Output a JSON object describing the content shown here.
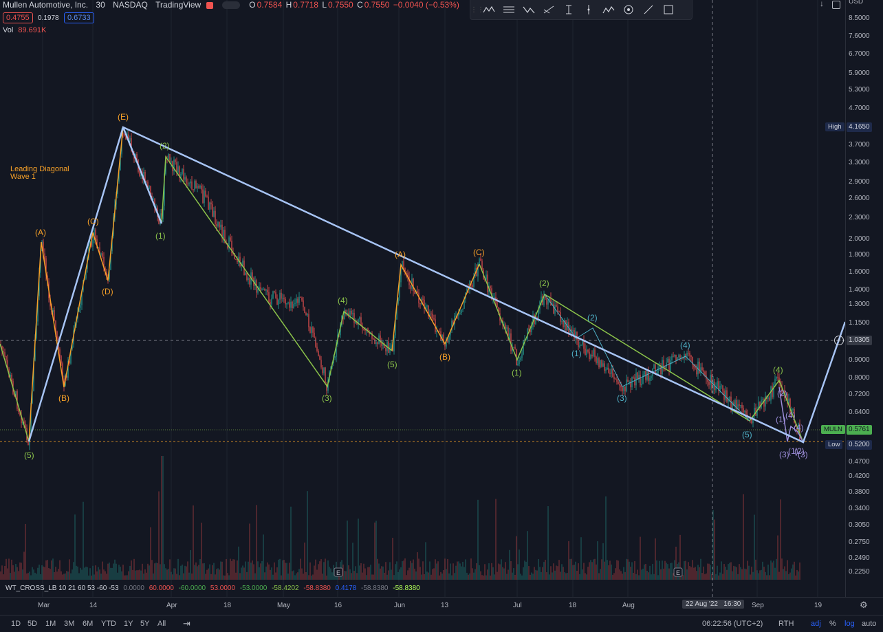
{
  "header": {
    "symbol_name": "Mullen Automotive, Inc.",
    "interval": "30",
    "exchange": "NASDAQ",
    "platform": "TradingView",
    "ohlc": {
      "o_label": "O",
      "o": "0.7584",
      "h_label": "H",
      "h": "0.7718",
      "l_label": "L",
      "l": "0.7550",
      "c_label": "C",
      "c": "0.7550",
      "change": "−0.0040 (−0.53%)"
    },
    "bid": "0.4755",
    "spread": "0.1978",
    "ask": "0.6733",
    "vol_label": "Vol",
    "vol_value": "89.691K"
  },
  "annotation": {
    "line1": "Leading Diagonal",
    "line2": "Wave 1"
  },
  "price_axis": {
    "currency": "USD",
    "ticks": [
      "8.5000",
      "7.6000",
      "6.7000",
      "5.9000",
      "5.3000",
      "4.7000",
      "3.7000",
      "3.3000",
      "2.9000",
      "2.6000",
      "2.3000",
      "2.0000",
      "1.8000",
      "1.6000",
      "1.4000",
      "1.3000",
      "1.1500",
      "0.9000",
      "0.8000",
      "0.7200",
      "0.6400",
      "0.4700",
      "0.4200",
      "0.3800",
      "0.3400",
      "0.3050",
      "0.2750",
      "0.2490",
      "0.2250"
    ],
    "high_label": "High",
    "high_value": "4.1650",
    "crosshair_value": "1.0305",
    "symbol_tag": "MULN",
    "last_value": "0.5761",
    "low_label": "Low",
    "low_value": "0.5200"
  },
  "time_axis": {
    "ticks": [
      "Mar",
      "14",
      "Apr",
      "18",
      "May",
      "16",
      "Jun",
      "13",
      "Jul",
      "18",
      "Aug",
      "Sep",
      "19"
    ],
    "crosshair_time": "22 Aug '22   16:30"
  },
  "wave_labels": [
    "(5)",
    "(A)",
    "(B)",
    "(C)",
    "(D)",
    "(E)",
    "(2)",
    "(1)",
    "(3)",
    "(4)",
    "(5)",
    "(A)",
    "(B)",
    "(C)",
    "(1)",
    "(2)",
    "(2)",
    "(1)",
    "(3)",
    "(4)",
    "(5)",
    "(4)",
    "(2)",
    "(1)",
    "(4)",
    "(3)",
    "(1)",
    "(2)",
    "(3)",
    "(4)"
  ],
  "indicator": {
    "name": "WT_CROSS_LB 10 21 60 53 -60 -53",
    "v1": "0.0000",
    "v2": "60.0000",
    "v3": "-60.0000",
    "v4": "53.0000",
    "v5": "-53.0000",
    "v6": "-58.4202",
    "v7": "-58.8380",
    "v8": "0.4178",
    "v9": "-58.8380",
    "v10": "-58.8380"
  },
  "bottom_bar": {
    "ranges": [
      "1D",
      "5D",
      "1M",
      "3M",
      "6M",
      "YTD",
      "1Y",
      "5Y",
      "All"
    ],
    "clock": "06:22:56 (UTC+2)",
    "session": "RTH",
    "opts": [
      "adj",
      "%",
      "log",
      "auto"
    ]
  },
  "event_marker": "E",
  "colors": {
    "bg": "#131722",
    "wave_blue": "#a7c4f5",
    "green": "#8bc34a",
    "orange": "#f6a028",
    "teal": "#4fb0c6",
    "purple": "#9c8dd9",
    "up": "#26a69a",
    "down": "#ef5350"
  }
}
